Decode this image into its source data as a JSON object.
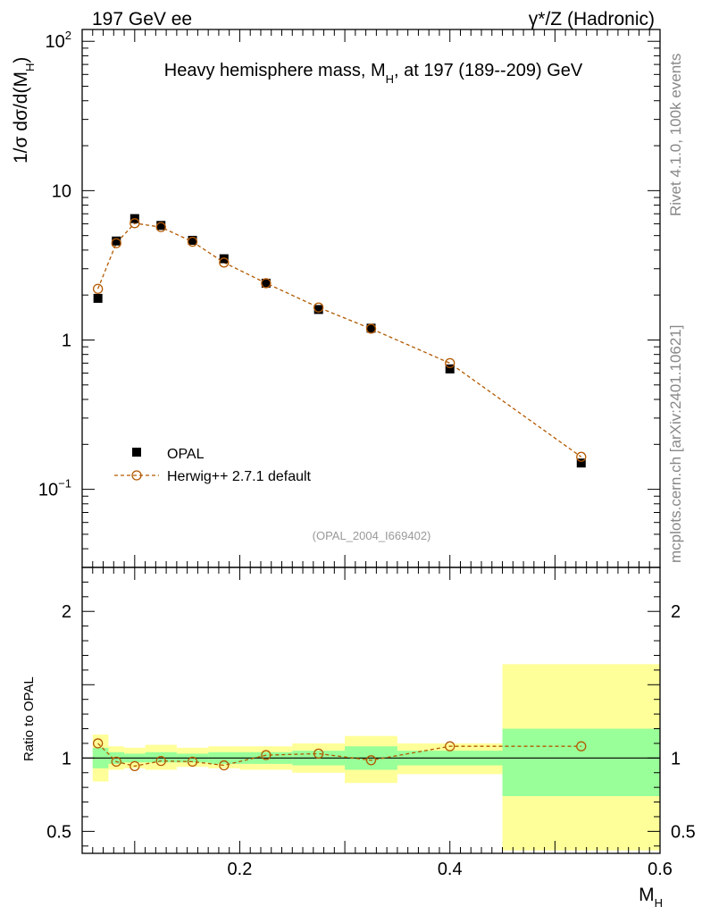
{
  "header": {
    "left": "197 GeV ee",
    "right": "γ*/Z (Hadronic)"
  },
  "side_text": {
    "version": "Rivet 4.1.0,  100k events",
    "source": "mcplots.cern.ch [arXiv:2401.10621]"
  },
  "colors": {
    "data": "#000000",
    "mc": "#b35900",
    "band_inner": "#99ff99",
    "band_outer": "#ffff99"
  },
  "chart_data": [
    {
      "type": "scatter",
      "panel": "main",
      "title": "Heavy hemisphere mass, M_H, at 197 (189--209) GeV",
      "title_parts": {
        "pre": "Heavy hemisphere mass, M",
        "sub": "H",
        "post": ", at 197 (189--209) GeV"
      },
      "ylabel": "1/σ  dσ/d(M_H)",
      "ylabel_parts": {
        "pre": "1/σ  dσ/d(M",
        "sub": "H",
        "post": ")"
      },
      "yscale": "log",
      "ylim": [
        0.03,
        120
      ],
      "xlim": [
        0.05,
        0.6
      ],
      "yticks": [
        {
          "value": 0.1,
          "label": "10",
          "sup": "−1"
        },
        {
          "value": 1,
          "label": "1",
          "sup": ""
        },
        {
          "value": 10,
          "label": "10",
          "sup": ""
        },
        {
          "value": 100,
          "label": "10",
          "sup": "2"
        }
      ],
      "annotation": "(OPAL_2004_I669402)",
      "series": [
        {
          "name": "OPAL",
          "marker": "filled-square",
          "x": [
            0.065,
            0.0825,
            0.1,
            0.125,
            0.155,
            0.185,
            0.225,
            0.275,
            0.325,
            0.4,
            0.525
          ],
          "values": [
            1.9,
            4.6,
            6.5,
            5.85,
            4.65,
            3.5,
            2.4,
            1.6,
            1.2,
            0.64,
            0.15
          ]
        },
        {
          "name": "Herwig++ 2.7.1 default",
          "marker": "open-circle",
          "line": "dashed",
          "x": [
            0.065,
            0.0825,
            0.1,
            0.125,
            0.155,
            0.185,
            0.225,
            0.275,
            0.325,
            0.4,
            0.525
          ],
          "values": [
            2.2,
            4.45,
            6.05,
            5.7,
            4.55,
            3.3,
            2.4,
            1.65,
            1.19,
            0.7,
            0.165
          ]
        }
      ]
    },
    {
      "type": "line",
      "panel": "ratio",
      "ylabel": "Ratio to OPAL",
      "xlabel": "M_H",
      "xlabel_parts": {
        "pre": "M",
        "sub": "H"
      },
      "ylim": [
        0.35,
        2.3
      ],
      "xlim": [
        0.05,
        0.6
      ],
      "xticks": [
        {
          "value": 0.2,
          "label": "0.2"
        },
        {
          "value": 0.4,
          "label": "0.4"
        },
        {
          "value": 0.6,
          "label": "0.6"
        }
      ],
      "yticks": [
        {
          "value": 0.5,
          "label": "0.5"
        },
        {
          "value": 1,
          "label": "1"
        },
        {
          "value": 2,
          "label": "2"
        }
      ],
      "bands": [
        {
          "x0": 0.06,
          "x1": 0.075,
          "inner": [
            0.93,
            1.07
          ],
          "outer": [
            0.84,
            1.16
          ]
        },
        {
          "x0": 0.075,
          "x1": 0.09,
          "inner": [
            0.96,
            1.04
          ],
          "outer": [
            0.92,
            1.08
          ]
        },
        {
          "x0": 0.09,
          "x1": 0.11,
          "inner": [
            0.97,
            1.03
          ],
          "outer": [
            0.93,
            1.07
          ]
        },
        {
          "x0": 0.11,
          "x1": 0.14,
          "inner": [
            0.97,
            1.04
          ],
          "outer": [
            0.92,
            1.09
          ]
        },
        {
          "x0": 0.14,
          "x1": 0.17,
          "inner": [
            0.97,
            1.03
          ],
          "outer": [
            0.94,
            1.07
          ]
        },
        {
          "x0": 0.17,
          "x1": 0.2,
          "inner": [
            0.96,
            1.04
          ],
          "outer": [
            0.93,
            1.08
          ]
        },
        {
          "x0": 0.2,
          "x1": 0.25,
          "inner": [
            0.96,
            1.04
          ],
          "outer": [
            0.92,
            1.08
          ]
        },
        {
          "x0": 0.25,
          "x1": 0.3,
          "inner": [
            0.95,
            1.05
          ],
          "outer": [
            0.9,
            1.1
          ]
        },
        {
          "x0": 0.3,
          "x1": 0.35,
          "inner": [
            0.92,
            1.08
          ],
          "outer": [
            0.83,
            1.15
          ]
        },
        {
          "x0": 0.35,
          "x1": 0.45,
          "inner": [
            0.95,
            1.05
          ],
          "outer": [
            0.89,
            1.1
          ]
        },
        {
          "x0": 0.45,
          "x1": 0.6,
          "inner": [
            0.74,
            1.2
          ],
          "outer": [
            0.37,
            1.64
          ]
        }
      ],
      "series": [
        {
          "name": "Herwig++ 2.7.1 default / OPAL",
          "marker": "open-circle",
          "line": "dashed",
          "x": [
            0.065,
            0.0825,
            0.1,
            0.125,
            0.155,
            0.185,
            0.225,
            0.275,
            0.325,
            0.4,
            0.525
          ],
          "values": [
            1.1,
            0.975,
            0.945,
            0.98,
            0.975,
            0.95,
            1.02,
            1.03,
            0.985,
            1.08,
            1.08
          ]
        }
      ]
    }
  ]
}
